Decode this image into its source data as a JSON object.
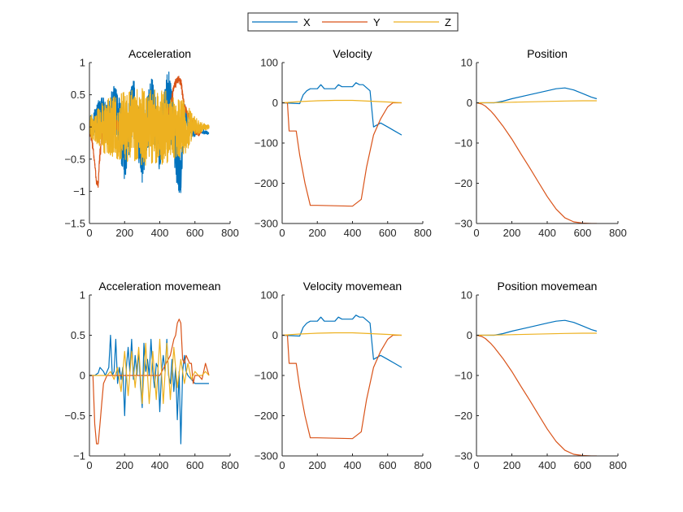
{
  "legend": {
    "placement": "top-center",
    "entries": [
      {
        "name": "X",
        "color": "#0072BD"
      },
      {
        "name": "Y",
        "color": "#D95319"
      },
      {
        "name": "Z",
        "color": "#EDB120"
      }
    ]
  },
  "chart_data": [
    {
      "type": "line",
      "title": "Acceleration",
      "xlim": [
        0,
        800
      ],
      "ylim": [
        -1.5,
        1
      ],
      "xticks": [
        "0",
        "200",
        "400",
        "600",
        "800"
      ],
      "yticks": [
        "-1.5",
        "-1",
        "-0.5",
        "0",
        "0.5",
        "1"
      ],
      "series": [
        {
          "name": "X",
          "noisy": true,
          "x": [
            0,
            40,
            60,
            100,
            150,
            200,
            250,
            300,
            350,
            400,
            450,
            500,
            520,
            540,
            580,
            620,
            680
          ],
          "y": [
            0.05,
            0.1,
            0.2,
            0.05,
            0.3,
            -0.4,
            0.35,
            -0.5,
            0.4,
            -0.3,
            0.5,
            -0.5,
            -0.8,
            0.2,
            -0.1,
            -0.05,
            -0.1
          ],
          "amp": [
            0.15,
            0.25,
            0.3,
            0.35,
            0.4,
            0.45,
            0.45,
            0.45,
            0.45,
            0.45,
            0.45,
            0.45,
            0.3,
            0.2,
            0.1,
            0.05,
            0.02
          ]
        },
        {
          "name": "Y",
          "noisy": true,
          "x": [
            0,
            20,
            40,
            50,
            60,
            80,
            100,
            200,
            300,
            400,
            460,
            480,
            500,
            520,
            540,
            560,
            580,
            600,
            620,
            650,
            680
          ],
          "y": [
            -0.05,
            -0.3,
            -0.85,
            -0.9,
            -0.4,
            0,
            0.05,
            0,
            0,
            0,
            0.3,
            0.6,
            0.75,
            0.7,
            0.3,
            0.2,
            0.1,
            -0.05,
            -0.1,
            0,
            0
          ],
          "amp": [
            0.05,
            0.08,
            0.05,
            0.05,
            0.1,
            0.08,
            0.08,
            0.08,
            0.08,
            0.08,
            0.08,
            0.08,
            0.06,
            0.06,
            0.06,
            0.05,
            0.05,
            0.05,
            0.05,
            0.03,
            0.02
          ]
        },
        {
          "name": "Z",
          "noisy": true,
          "x": [
            0,
            50,
            100,
            200,
            300,
            400,
            450,
            500,
            550,
            600,
            650,
            680
          ],
          "y": [
            0,
            0,
            0,
            0,
            0,
            0,
            0,
            0,
            0,
            0,
            0,
            0
          ],
          "amp": [
            0.15,
            0.3,
            0.45,
            0.55,
            0.6,
            0.6,
            0.55,
            0.5,
            0.4,
            0.15,
            0.06,
            0.03
          ]
        }
      ]
    },
    {
      "type": "line",
      "title": "Velocity",
      "xlim": [
        0,
        800
      ],
      "ylim": [
        -300,
        100
      ],
      "xticks": [
        "0",
        "200",
        "400",
        "600",
        "800"
      ],
      "yticks": [
        "-300",
        "-200",
        "-100",
        "0",
        "100"
      ],
      "series": [
        {
          "name": "X",
          "x": [
            0,
            100,
            120,
            140,
            160,
            200,
            220,
            240,
            260,
            300,
            320,
            340,
            360,
            400,
            420,
            440,
            460,
            500,
            520,
            540,
            560,
            600,
            640,
            680
          ],
          "y": [
            0,
            -2,
            20,
            30,
            35,
            35,
            45,
            35,
            35,
            35,
            45,
            40,
            40,
            40,
            50,
            45,
            45,
            30,
            -60,
            -55,
            -50,
            -60,
            -70,
            -80
          ]
        },
        {
          "name": "Y",
          "x": [
            0,
            30,
            40,
            80,
            100,
            130,
            160,
            180,
            200,
            300,
            400,
            450,
            480,
            520,
            560,
            600,
            630,
            680
          ],
          "y": [
            0,
            0,
            -70,
            -70,
            -130,
            -200,
            -255,
            -255,
            -255,
            -256,
            -257,
            -240,
            -160,
            -80,
            -40,
            -10,
            0,
            0
          ]
        },
        {
          "name": "Z",
          "x": [
            0,
            100,
            200,
            300,
            400,
            500,
            600,
            680
          ],
          "y": [
            0,
            3,
            5,
            6,
            6,
            4,
            2,
            0
          ]
        }
      ]
    },
    {
      "type": "line",
      "title": "Position",
      "xlim": [
        0,
        800
      ],
      "ylim": [
        -30,
        10
      ],
      "xticks": [
        "0",
        "200",
        "400",
        "600",
        "800"
      ],
      "yticks": [
        "-30",
        "-20",
        "-10",
        "0",
        "10"
      ],
      "series": [
        {
          "name": "X",
          "x": [
            0,
            100,
            150,
            200,
            300,
            400,
            450,
            500,
            550,
            600,
            650,
            680
          ],
          "y": [
            0,
            0,
            0.4,
            1,
            2,
            3,
            3.5,
            3.7,
            3.2,
            2.3,
            1.4,
            1
          ]
        },
        {
          "name": "Y",
          "x": [
            0,
            30,
            50,
            80,
            100,
            150,
            200,
            250,
            300,
            350,
            400,
            450,
            500,
            550,
            600,
            650,
            680
          ],
          "y": [
            0,
            -0.3,
            -0.8,
            -2,
            -3,
            -5.8,
            -9,
            -12.6,
            -16.1,
            -19.7,
            -23.3,
            -26.4,
            -28.6,
            -29.6,
            -29.9,
            -30,
            -30
          ]
        },
        {
          "name": "Z",
          "x": [
            0,
            100,
            200,
            300,
            400,
            500,
            600,
            680
          ],
          "y": [
            0,
            0.05,
            0.15,
            0.25,
            0.35,
            0.45,
            0.5,
            0.5
          ]
        }
      ]
    },
    {
      "type": "line",
      "title": "Acceleration movemean",
      "xlim": [
        0,
        800
      ],
      "ylim": [
        -1,
        1
      ],
      "xticks": [
        "0",
        "200",
        "400",
        "600",
        "800"
      ],
      "yticks": [
        "-1",
        "-0.5",
        "0",
        "0.5",
        "1"
      ],
      "series": [
        {
          "name": "X",
          "x": [
            0,
            30,
            50,
            60,
            80,
            90,
            100,
            110,
            120,
            130,
            140,
            150,
            160,
            170,
            180,
            190,
            200,
            210,
            220,
            230,
            240,
            250,
            260,
            270,
            280,
            290,
            300,
            310,
            320,
            330,
            340,
            350,
            360,
            370,
            380,
            390,
            400,
            410,
            420,
            430,
            440,
            450,
            460,
            470,
            480,
            490,
            500,
            510,
            520,
            530,
            540,
            550,
            560,
            580,
            600,
            620,
            650,
            680
          ],
          "y": [
            0,
            0,
            0.03,
            0.1,
            0.05,
            0,
            0.05,
            0.1,
            0.5,
            0,
            0.05,
            0.45,
            -0.1,
            0.1,
            -0.05,
            0.1,
            -0.5,
            0.1,
            0.35,
            0.05,
            0.45,
            -0.05,
            0.25,
            0,
            0.3,
            -0.1,
            -0.4,
            0.4,
            0.05,
            0.2,
            0,
            0.45,
            0.05,
            -0.15,
            0.15,
            0.1,
            -0.45,
            0.05,
            0.25,
            0.05,
            0.45,
            0,
            -0.1,
            0.2,
            -0.2,
            0.1,
            -0.55,
            0.05,
            -0.85,
            0.05,
            0.25,
            0.05,
            0,
            -0.05,
            -0.1,
            -0.1,
            -0.1,
            -0.1
          ]
        },
        {
          "name": "Y",
          "x": [
            0,
            20,
            30,
            40,
            50,
            60,
            70,
            80,
            100,
            120,
            200,
            300,
            400,
            460,
            480,
            490,
            500,
            510,
            520,
            530,
            540,
            550,
            560,
            570,
            580,
            590,
            600,
            620,
            640,
            660,
            680
          ],
          "y": [
            0,
            0,
            -0.6,
            -0.85,
            -0.85,
            -0.6,
            -0.35,
            -0.1,
            0,
            0,
            0,
            0,
            0,
            0.25,
            0.45,
            0.5,
            0.65,
            0.7,
            0.65,
            0.2,
            0.15,
            0.25,
            0.2,
            0.15,
            0.15,
            -0.1,
            0,
            0,
            -0.05,
            0.15,
            0
          ]
        },
        {
          "name": "Z",
          "x": [
            0,
            100,
            120,
            140,
            160,
            180,
            200,
            220,
            240,
            260,
            280,
            300,
            320,
            340,
            360,
            380,
            400,
            420,
            440,
            460,
            480,
            500,
            520,
            540,
            560,
            580,
            600,
            620,
            640,
            660,
            680
          ],
          "y": [
            0,
            0,
            0.05,
            -0.05,
            0.1,
            -0.2,
            0.3,
            -0.25,
            0.3,
            -0.15,
            0.35,
            -0.35,
            0.4,
            -0.35,
            0.3,
            -0.3,
            0.45,
            -0.35,
            0.4,
            -0.3,
            0.35,
            -0.15,
            0.2,
            -0.1,
            0.15,
            -0.05,
            0.05,
            0,
            0,
            0.05,
            0
          ]
        }
      ]
    },
    {
      "type": "line",
      "title": "Velocity movemean",
      "xlim": [
        0,
        800
      ],
      "ylim": [
        -300,
        100
      ],
      "xticks": [
        "0",
        "200",
        "400",
        "600",
        "800"
      ],
      "yticks": [
        "-300",
        "-200",
        "-100",
        "0",
        "100"
      ],
      "series": [
        {
          "name": "X",
          "x": [
            0,
            100,
            120,
            140,
            160,
            200,
            220,
            240,
            260,
            300,
            320,
            340,
            360,
            400,
            420,
            440,
            460,
            500,
            520,
            540,
            560,
            600,
            640,
            680
          ],
          "y": [
            0,
            -2,
            20,
            30,
            35,
            35,
            45,
            35,
            35,
            35,
            45,
            40,
            40,
            40,
            50,
            45,
            45,
            30,
            -60,
            -55,
            -50,
            -60,
            -70,
            -80
          ]
        },
        {
          "name": "Y",
          "x": [
            0,
            30,
            40,
            80,
            100,
            130,
            160,
            180,
            200,
            300,
            400,
            450,
            480,
            520,
            560,
            600,
            630,
            680
          ],
          "y": [
            0,
            0,
            -70,
            -70,
            -130,
            -200,
            -255,
            -255,
            -255,
            -256,
            -257,
            -240,
            -160,
            -80,
            -40,
            -10,
            0,
            0
          ]
        },
        {
          "name": "Z",
          "x": [
            0,
            100,
            200,
            300,
            400,
            500,
            600,
            680
          ],
          "y": [
            0,
            3,
            5,
            6,
            6,
            4,
            2,
            0
          ]
        }
      ]
    },
    {
      "type": "line",
      "title": "Position movemean",
      "xlim": [
        0,
        800
      ],
      "ylim": [
        -30,
        10
      ],
      "xticks": [
        "0",
        "200",
        "400",
        "600",
        "800"
      ],
      "yticks": [
        "-30",
        "-20",
        "-10",
        "0",
        "10"
      ],
      "series": [
        {
          "name": "X",
          "x": [
            0,
            100,
            150,
            200,
            300,
            400,
            450,
            500,
            550,
            600,
            650,
            680
          ],
          "y": [
            0,
            0,
            0.4,
            1,
            2,
            3,
            3.5,
            3.7,
            3.2,
            2.3,
            1.4,
            1
          ]
        },
        {
          "name": "Y",
          "x": [
            0,
            30,
            50,
            80,
            100,
            150,
            200,
            250,
            300,
            350,
            400,
            450,
            500,
            550,
            600,
            650,
            680
          ],
          "y": [
            0,
            -0.3,
            -0.8,
            -2,
            -3,
            -5.8,
            -9,
            -12.6,
            -16.1,
            -19.7,
            -23.3,
            -26.4,
            -28.6,
            -29.6,
            -29.9,
            -30,
            -30
          ]
        },
        {
          "name": "Z",
          "x": [
            0,
            100,
            200,
            300,
            400,
            500,
            600,
            680
          ],
          "y": [
            0,
            0.05,
            0.15,
            0.25,
            0.35,
            0.45,
            0.5,
            0.5
          ]
        }
      ]
    }
  ]
}
